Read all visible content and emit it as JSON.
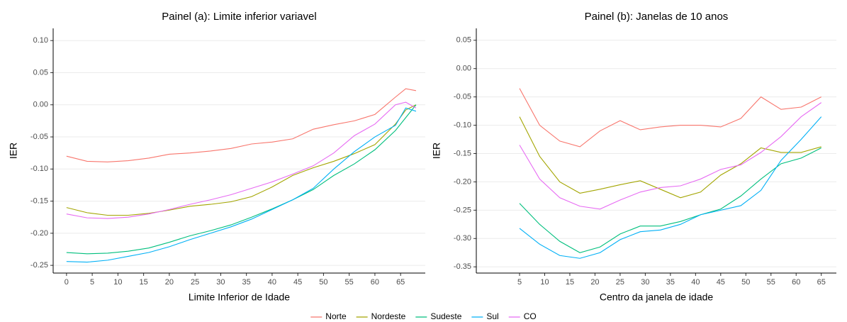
{
  "chart_data": [
    {
      "type": "line",
      "title": "Painel (a): Limite inferior variavel",
      "xlabel": "Limite Inferior de Idade",
      "ylabel": "IER",
      "x": [
        0,
        4,
        8,
        12,
        16,
        20,
        24,
        28,
        32,
        36,
        40,
        44,
        48,
        52,
        56,
        60,
        64,
        66,
        68
      ],
      "xlim": [
        -2.6,
        69.8
      ],
      "xticks": [
        0,
        5,
        10,
        15,
        20,
        25,
        30,
        35,
        40,
        45,
        50,
        55,
        60,
        65
      ],
      "ylim": [
        -0.262,
        0.119
      ],
      "yticks": [
        -0.25,
        {
          "value": -0.2,
          "label": "-0.20"
        },
        -0.15,
        {
          "value": -0.1,
          "label": "-0.10"
        },
        -0.05,
        {
          "value": 0,
          "label": "0.00"
        },
        0.05,
        {
          "value": 0.1,
          "label": "0.10"
        }
      ],
      "grid": true,
      "legend": "bottom",
      "series": [
        {
          "name": "Norte",
          "color": "#F8766D",
          "values": [
            -0.08,
            -0.088,
            -0.089,
            -0.087,
            -0.083,
            -0.077,
            -0.075,
            -0.072,
            -0.068,
            -0.061,
            -0.058,
            -0.053,
            -0.038,
            -0.031,
            -0.025,
            -0.015,
            0.012,
            0.025,
            0.022
          ]
        },
        {
          "name": "Nordeste",
          "color": "#A3A500",
          "values": [
            -0.16,
            -0.168,
            -0.172,
            -0.172,
            -0.169,
            -0.164,
            -0.158,
            -0.155,
            -0.151,
            -0.143,
            -0.128,
            -0.11,
            -0.098,
            -0.088,
            -0.076,
            -0.062,
            -0.03,
            -0.008,
            0.0
          ]
        },
        {
          "name": "Sudeste",
          "color": "#00BF7D",
          "values": [
            -0.23,
            -0.232,
            -0.231,
            -0.228,
            -0.223,
            -0.214,
            -0.204,
            -0.196,
            -0.187,
            -0.175,
            -0.162,
            -0.148,
            -0.132,
            -0.11,
            -0.092,
            -0.07,
            -0.04,
            -0.02,
            0.0
          ]
        },
        {
          "name": "Sul",
          "color": "#00B0F6",
          "values": [
            -0.244,
            -0.245,
            -0.242,
            -0.236,
            -0.23,
            -0.221,
            -0.21,
            -0.2,
            -0.19,
            -0.178,
            -0.163,
            -0.148,
            -0.13,
            -0.1,
            -0.073,
            -0.05,
            -0.032,
            -0.005,
            -0.01
          ]
        },
        {
          "name": "CO",
          "color": "#E76BF3",
          "values": [
            -0.17,
            -0.176,
            -0.177,
            -0.175,
            -0.17,
            -0.163,
            -0.155,
            -0.148,
            -0.14,
            -0.13,
            -0.12,
            -0.108,
            -0.095,
            -0.075,
            -0.048,
            -0.03,
            0.0,
            0.004,
            -0.005
          ]
        }
      ]
    },
    {
      "type": "line",
      "title": "Painel (b): Janelas de 10 anos",
      "xlabel": "Centro da janela de idade",
      "ylabel": "IER",
      "x": [
        5,
        9,
        13,
        17,
        21,
        25,
        29,
        33,
        37,
        41,
        45,
        49,
        53,
        57,
        61,
        65
      ],
      "xlim": [
        -3.6,
        68
      ],
      "xticks": [
        5,
        10,
        15,
        20,
        25,
        30,
        35,
        40,
        45,
        50,
        55,
        60,
        65
      ],
      "ylim": [
        -0.361,
        0.071
      ],
      "yticks": [
        -0.35,
        {
          "value": -0.3,
          "label": "-0.30"
        },
        -0.25,
        {
          "value": -0.2,
          "label": "-0.20"
        },
        -0.15,
        {
          "value": -0.1,
          "label": "-0.10"
        },
        -0.05,
        {
          "value": 0,
          "label": "0.00"
        },
        0.05
      ],
      "grid": true,
      "series": [
        {
          "name": "Norte",
          "color": "#F8766D",
          "values": [
            -0.035,
            -0.1,
            -0.128,
            -0.138,
            -0.11,
            -0.092,
            -0.108,
            -0.103,
            -0.1,
            -0.1,
            -0.103,
            -0.088,
            -0.05,
            -0.072,
            -0.068,
            -0.05
          ]
        },
        {
          "name": "Nordeste",
          "color": "#A3A500",
          "values": [
            -0.085,
            -0.155,
            -0.2,
            -0.22,
            -0.213,
            -0.205,
            -0.198,
            -0.213,
            -0.228,
            -0.218,
            -0.188,
            -0.168,
            -0.14,
            -0.148,
            -0.148,
            -0.138
          ]
        },
        {
          "name": "Sudeste",
          "color": "#00BF7D",
          "values": [
            -0.238,
            -0.275,
            -0.305,
            -0.325,
            -0.315,
            -0.292,
            -0.278,
            -0.278,
            -0.27,
            -0.258,
            -0.248,
            -0.225,
            -0.195,
            -0.168,
            -0.158,
            -0.14
          ]
        },
        {
          "name": "Sul",
          "color": "#00B0F6",
          "values": [
            -0.282,
            -0.31,
            -0.33,
            -0.335,
            -0.325,
            -0.302,
            -0.288,
            -0.285,
            -0.275,
            -0.258,
            -0.25,
            -0.242,
            -0.215,
            -0.162,
            -0.125,
            -0.085
          ]
        },
        {
          "name": "CO",
          "color": "#E76BF3",
          "values": [
            -0.135,
            -0.195,
            -0.228,
            -0.243,
            -0.248,
            -0.232,
            -0.218,
            -0.21,
            -0.207,
            -0.195,
            -0.178,
            -0.17,
            -0.148,
            -0.12,
            -0.085,
            -0.06
          ]
        }
      ]
    }
  ]
}
